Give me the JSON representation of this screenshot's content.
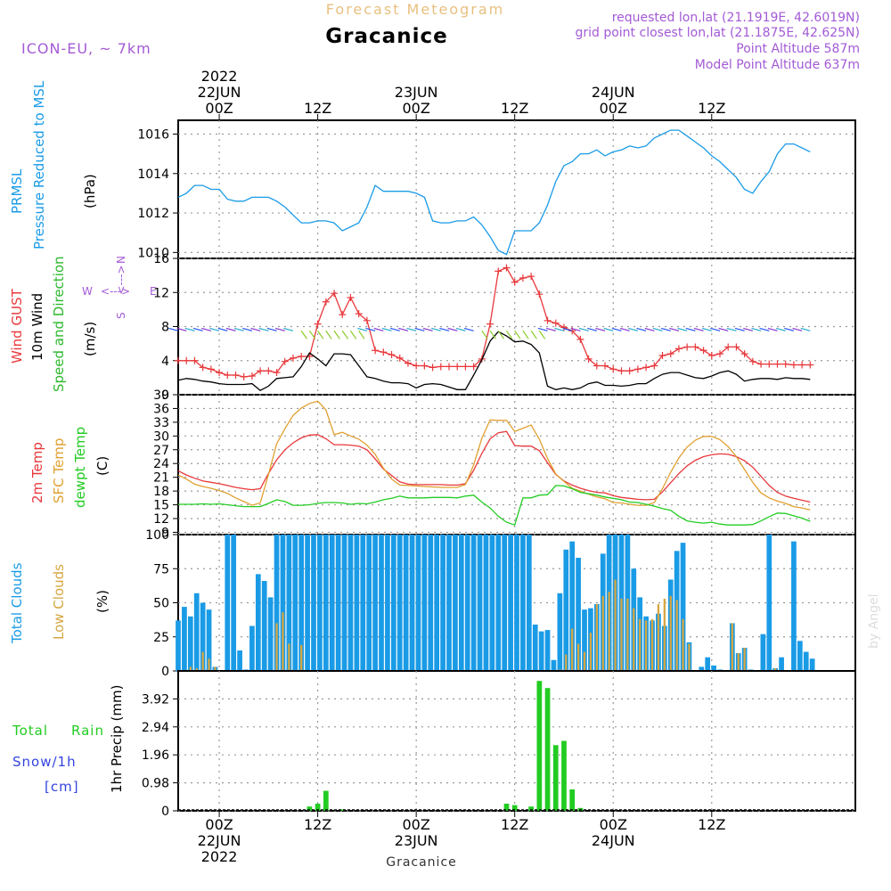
{
  "header": {
    "title": "Forecast Meteogram",
    "location": "Gracanice",
    "model": "ICON-EU, ~ 7km",
    "requested": "requested lon,lat (21.1919E, 42.6019N)",
    "gridpoint": "grid point closest lon,lat (21.1875E, 42.625N)",
    "point_alt": "Point Altitude 587m",
    "model_alt": "Model Point Altitude 637m",
    "footer": "Gracanice",
    "watermark": "by Angel"
  },
  "colors": {
    "prmsl": "#1a9be6",
    "gust": "#e8383c",
    "wind": "#000000",
    "dir": "#2db82d",
    "temp": "#e8383c",
    "sfc": "#e0a030",
    "dewpt": "#22cc22",
    "total_cloud": "#1a9be6",
    "low_cloud": "#d6a640",
    "rain": "#22cc22",
    "snow": "#3344dd",
    "purple": "#a35ad6",
    "title": "#e8c080"
  },
  "time_axis": {
    "top": [
      {
        "h": 0,
        "lines": [
          "2022",
          "22JUN",
          "00Z"
        ]
      },
      {
        "h": 12,
        "lines": [
          "12Z"
        ]
      },
      {
        "h": 24,
        "lines": [
          "23JUN",
          "00Z"
        ]
      },
      {
        "h": 36,
        "lines": [
          "12Z"
        ]
      },
      {
        "h": 48,
        "lines": [
          "24JUN",
          "00Z"
        ]
      },
      {
        "h": 60,
        "lines": [
          "12Z"
        ]
      }
    ],
    "bottom": [
      {
        "h": 0,
        "lines": [
          "00Z",
          "22JUN",
          "2022"
        ]
      },
      {
        "h": 12,
        "lines": [
          "12Z"
        ]
      },
      {
        "h": 24,
        "lines": [
          "00Z",
          "23JUN"
        ]
      },
      {
        "h": 36,
        "lines": [
          "12Z"
        ]
      },
      {
        "h": 48,
        "lines": [
          "00Z",
          "24JUN"
        ]
      },
      {
        "h": 60,
        "lines": [
          "12Z"
        ]
      }
    ]
  },
  "labels": {
    "prmsl": [
      "PRMSL",
      "Pressure Reduced to MSL",
      "(hPa)"
    ],
    "wind": [
      "Wind GUST",
      "10m Wind",
      "Speed and Direction",
      "(m/s)"
    ],
    "temp": [
      "2m Temp",
      "SFC Temp",
      "dewpt Temp",
      "(C)"
    ],
    "cloud": [
      "Total Clouds",
      "Low Clouds",
      "(%)"
    ],
    "precip": [
      "Total",
      "Rain",
      "Snow/1h",
      "[cm]",
      "1hr Precip (mm)"
    ],
    "compass": {
      "n": "N",
      "s": "S",
      "w": "W",
      "e": "E",
      "arrow": "<--->"
    }
  },
  "chart_data": [
    {
      "type": "line",
      "title": "PRMSL",
      "ylabel": "(hPa)",
      "ylim": [
        1009.7,
        1016.7
      ],
      "yticks": [
        1010,
        1012,
        1014,
        1016
      ],
      "x_start_hour": -5,
      "x_step_hours": 1,
      "series": [
        {
          "name": "PRMSL",
          "values": [
            1012.8,
            1013.0,
            1013.4,
            1013.4,
            1013.2,
            1013.2,
            1012.7,
            1012.6,
            1012.6,
            1012.8,
            1012.8,
            1012.8,
            1012.6,
            1012.3,
            1011.9,
            1011.5,
            1011.5,
            1011.6,
            1011.6,
            1011.5,
            1011.1,
            1011.3,
            1011.5,
            1012.3,
            1013.4,
            1013.1,
            1013.1,
            1013.1,
            1013.1,
            1013.0,
            1012.8,
            1011.6,
            1011.5,
            1011.5,
            1011.6,
            1011.6,
            1011.8,
            1011.4,
            1010.8,
            1010.1,
            1009.9,
            1011.1,
            1011.1,
            1011.1,
            1011.5,
            1012.4,
            1013.6,
            1014.4,
            1014.6,
            1015.0,
            1015.0,
            1015.2,
            1014.9,
            1015.1,
            1015.2,
            1015.4,
            1015.3,
            1015.4,
            1015.8,
            1016.0,
            1016.2,
            1016.2,
            1015.9,
            1015.6,
            1015.3,
            1014.9,
            1014.6,
            1014.2,
            1013.8,
            1013.2,
            1013.0,
            1013.6,
            1014.1,
            1015.0,
            1015.5,
            1015.5,
            1015.3,
            1015.1
          ]
        }
      ]
    },
    {
      "type": "line",
      "title": "Wind",
      "ylabel": "(m/s)",
      "ylim": [
        0,
        16
      ],
      "yticks": [
        0,
        4,
        8,
        12,
        16
      ],
      "x_start_hour": -5,
      "x_step_hours": 1,
      "series": [
        {
          "name": "Wind GUST",
          "values": [
            4.0,
            4.0,
            4.0,
            3.2,
            3.0,
            2.6,
            2.3,
            2.3,
            2.1,
            2.2,
            2.8,
            2.8,
            2.6,
            3.9,
            4.3,
            4.5,
            4.5,
            8.3,
            10.9,
            11.9,
            9.4,
            11.4,
            9.5,
            8.7,
            5.2,
            5.0,
            4.7,
            4.3,
            3.7,
            3.4,
            3.4,
            3.2,
            3.3,
            3.3,
            3.3,
            3.3,
            3.3,
            4.2,
            8.3,
            14.5,
            14.9,
            13.2,
            13.7,
            13.9,
            11.8,
            8.7,
            8.4,
            7.9,
            7.5,
            6.5,
            4.2,
            3.4,
            3.4,
            3.0,
            2.8,
            2.8,
            3.0,
            3.2,
            3.4,
            4.6,
            4.8,
            5.4,
            5.6,
            5.6,
            5.2,
            4.6,
            4.8,
            5.6,
            5.6,
            4.8,
            3.9,
            3.6,
            3.6,
            3.6,
            3.6,
            3.5,
            3.5,
            3.5
          ]
        },
        {
          "name": "10m Wind",
          "values": [
            1.7,
            1.9,
            1.8,
            1.6,
            1.5,
            1.3,
            1.2,
            1.2,
            1.2,
            1.3,
            0.5,
            1.0,
            1.9,
            2.0,
            2.1,
            3.3,
            4.9,
            4.2,
            3.4,
            4.8,
            4.8,
            4.7,
            3.4,
            2.1,
            1.9,
            1.6,
            1.4,
            1.4,
            1.3,
            0.8,
            1.2,
            1.3,
            1.2,
            0.9,
            0.6,
            0.6,
            2.3,
            4.1,
            6.3,
            7.4,
            6.9,
            6.2,
            6.3,
            5.9,
            4.9,
            1.0,
            0.6,
            0.8,
            0.6,
            0.8,
            1.3,
            1.5,
            1.1,
            1.1,
            1.0,
            1.1,
            1.3,
            1.3,
            1.9,
            2.4,
            2.6,
            2.6,
            2.3,
            2.0,
            1.9,
            2.2,
            2.6,
            2.8,
            2.4,
            1.6,
            1.8,
            1.9,
            1.9,
            1.8,
            2.0,
            1.9,
            1.9,
            1.8
          ]
        }
      ]
    },
    {
      "type": "line",
      "title": "Temperature",
      "ylabel": "(C)",
      "ylim": [
        8.5,
        39
      ],
      "yticks": [
        9,
        12,
        15,
        18,
        21,
        24,
        27,
        30,
        33,
        36,
        39
      ],
      "x_start_hour": -5,
      "x_step_hours": 1,
      "series": [
        {
          "name": "2m Temp",
          "values": [
            22.4,
            21.5,
            20.8,
            20.2,
            19.9,
            19.6,
            19.2,
            18.8,
            18.5,
            18.3,
            18.5,
            21.8,
            24.8,
            27.0,
            28.5,
            29.6,
            30.2,
            30.3,
            29.4,
            28.1,
            28.1,
            28.0,
            27.8,
            27.0,
            25.0,
            22.8,
            21.4,
            20.0,
            19.5,
            19.4,
            19.4,
            19.4,
            19.4,
            19.3,
            19.3,
            19.6,
            22.5,
            26.2,
            29.4,
            30.7,
            31.0,
            27.9,
            27.8,
            27.8,
            26.8,
            24.2,
            21.6,
            20.2,
            19.3,
            18.6,
            18.1,
            17.7,
            17.6,
            17.0,
            16.6,
            16.4,
            16.2,
            16.1,
            16.2,
            17.8,
            19.8,
            21.8,
            23.5,
            24.7,
            25.5,
            25.9,
            26.1,
            26.0,
            25.5,
            24.6,
            23.2,
            21.2,
            19.2,
            17.7,
            16.9,
            16.4,
            16.0,
            15.6
          ]
        },
        {
          "name": "SFC Temp",
          "values": [
            21.5,
            20.6,
            19.5,
            19.0,
            18.6,
            18.1,
            17.5,
            16.5,
            15.7,
            14.9,
            15.4,
            21.6,
            28.3,
            31.6,
            34.5,
            36.1,
            37.1,
            37.6,
            35.7,
            30.3,
            30.8,
            30.0,
            29.3,
            28.0,
            26.0,
            23.0,
            20.6,
            19.3,
            19.2,
            19.1,
            19.0,
            18.9,
            18.8,
            18.8,
            18.8,
            19.4,
            23.7,
            29.5,
            33.5,
            33.4,
            33.4,
            31.0,
            31.7,
            32.4,
            29.3,
            25.1,
            21.7,
            20.1,
            18.6,
            18.0,
            17.3,
            16.7,
            16.3,
            15.5,
            15.4,
            15.1,
            14.9,
            14.9,
            15.5,
            18.5,
            22.1,
            25.2,
            27.6,
            29.1,
            29.9,
            29.9,
            29.2,
            27.7,
            25.5,
            22.7,
            19.9,
            17.6,
            16.5,
            15.8,
            15.3,
            14.6,
            14.3,
            13.9
          ]
        },
        {
          "name": "dewpt Temp",
          "values": [
            15.1,
            15.1,
            15.1,
            15.2,
            15.1,
            15.2,
            15.0,
            14.8,
            14.6,
            14.6,
            14.6,
            15.3,
            16.1,
            15.7,
            14.9,
            14.9,
            15.0,
            15.3,
            15.5,
            15.5,
            15.4,
            15.1,
            15.3,
            15.2,
            15.6,
            16.1,
            16.4,
            16.9,
            16.5,
            16.5,
            16.5,
            16.6,
            16.6,
            16.6,
            16.5,
            16.9,
            17.1,
            15.6,
            14.3,
            12.5,
            11.2,
            10.6,
            16.5,
            16.5,
            17.1,
            17.2,
            19.2,
            19.1,
            18.5,
            17.7,
            17.4,
            17.1,
            16.7,
            16.4,
            16.1,
            15.6,
            15.5,
            15.1,
            14.7,
            14.2,
            13.8,
            12.5,
            11.5,
            11.2,
            11.0,
            11.2,
            10.8,
            10.6,
            10.6,
            10.6,
            10.7,
            11.5,
            12.4,
            13.2,
            13.1,
            12.6,
            12.1,
            11.4
          ]
        }
      ]
    },
    {
      "type": "bar",
      "title": "Clouds",
      "ylabel": "(%)",
      "ylim": [
        0,
        100
      ],
      "yticks": [
        0,
        25,
        50,
        75,
        100
      ],
      "x_start_hour": -5,
      "x_step_hours": 1,
      "series": [
        {
          "name": "Total Clouds",
          "values": [
            37,
            47,
            40,
            57,
            50,
            45,
            3,
            0,
            100,
            100,
            15,
            1,
            33,
            71,
            66,
            54,
            100,
            100,
            100,
            100,
            100,
            100,
            100,
            100,
            100,
            100,
            100,
            100,
            100,
            100,
            100,
            100,
            100,
            100,
            100,
            100,
            100,
            100,
            100,
            100,
            100,
            100,
            100,
            100,
            100,
            100,
            100,
            100,
            100,
            100,
            100,
            100,
            100,
            100,
            100,
            100,
            100,
            100,
            34,
            29,
            30,
            8,
            57,
            89,
            95,
            83,
            45,
            46,
            49,
            86,
            100,
            100,
            100,
            100,
            75,
            54,
            40,
            37,
            42,
            33,
            67,
            88,
            94,
            21,
            0,
            3,
            10,
            4,
            1,
            0,
            35,
            13,
            17,
            1,
            0,
            27,
            100,
            2,
            10,
            0,
            95,
            22,
            14,
            9
          ]
        },
        {
          "name": "Low Clouds",
          "values": [
            0,
            0,
            3,
            2,
            14,
            9,
            3,
            0,
            0,
            0,
            0,
            0,
            0,
            0,
            0,
            0,
            35,
            43,
            20,
            0,
            19,
            0,
            0,
            0,
            0,
            0,
            0,
            0,
            0,
            0,
            0,
            0,
            0,
            0,
            0,
            0,
            0,
            0,
            0,
            0,
            0,
            0,
            0,
            0,
            0,
            0,
            0,
            0,
            0,
            0,
            0,
            0,
            0,
            0,
            0,
            0,
            0,
            0,
            0,
            0,
            0,
            0,
            1,
            12,
            31,
            20,
            14,
            28,
            49,
            55,
            58,
            67,
            53,
            53,
            46,
            38,
            37,
            38,
            49,
            53,
            55,
            52,
            38,
            20,
            0,
            0,
            0,
            0,
            0,
            0,
            35,
            13,
            17,
            0,
            0,
            0,
            0,
            2,
            0,
            0,
            0,
            0,
            0,
            0
          ]
        }
      ]
    },
    {
      "type": "bar",
      "title": "1hr Precip",
      "ylabel": "1hr Precip (mm)",
      "ylim": [
        0,
        4.9
      ],
      "yticks": [
        0,
        0.98,
        1.96,
        2.94,
        3.92
      ],
      "x_start_hour": -5,
      "x_step_hours": 1,
      "series": [
        {
          "name": "Total Rain",
          "values": [
            0,
            0,
            0,
            0,
            0,
            0,
            0,
            0,
            0,
            0,
            0,
            0,
            0,
            0,
            0,
            0,
            0.15,
            0.25,
            0.7,
            0,
            0.05,
            0,
            0,
            0,
            0,
            0,
            0,
            0,
            0,
            0,
            0,
            0,
            0,
            0,
            0,
            0,
            0,
            0,
            0,
            0,
            0.25,
            0.2,
            0,
            0.15,
            4.55,
            4.3,
            2.3,
            2.45,
            0.75,
            0.1,
            0,
            0,
            0,
            0,
            0,
            0,
            0,
            0,
            0,
            0,
            0,
            0,
            0,
            0,
            0,
            0,
            0,
            0,
            0,
            0,
            0,
            0,
            0,
            0,
            0,
            0,
            0,
            0
          ]
        },
        {
          "name": "Snow/1h",
          "values": [
            0,
            0,
            0,
            0,
            0,
            0,
            0,
            0,
            0,
            0,
            0,
            0,
            0,
            0,
            0,
            0,
            0,
            0,
            0,
            0,
            0,
            0,
            0,
            0,
            0,
            0,
            0,
            0,
            0,
            0,
            0,
            0,
            0,
            0,
            0,
            0,
            0,
            0,
            0,
            0,
            0,
            0,
            0,
            0,
            0,
            0,
            0,
            0,
            0,
            0,
            0,
            0,
            0,
            0,
            0,
            0,
            0,
            0,
            0,
            0,
            0,
            0,
            0,
            0,
            0,
            0,
            0,
            0,
            0,
            0,
            0,
            0,
            0,
            0,
            0,
            0,
            0,
            0
          ]
        }
      ]
    }
  ]
}
